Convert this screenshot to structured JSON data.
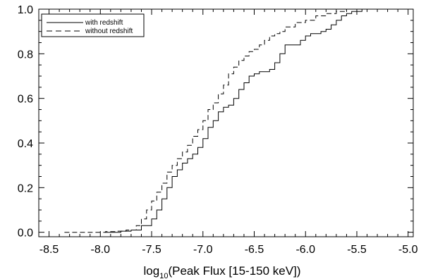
{
  "chart_data": {
    "type": "line",
    "title": "",
    "xlabel": {
      "prefix": "log",
      "subscript": "10",
      "suffix": "(Peak Flux [15-150 keV])"
    },
    "ylabel": "",
    "xlim": [
      -8.6,
      -4.95
    ],
    "ylim": [
      -0.02,
      1.0
    ],
    "x_ticks": [
      -8.5,
      -8.0,
      -7.5,
      -7.0,
      -6.5,
      -6.0,
      -5.5,
      -5.0
    ],
    "x_tick_labels": [
      "-8.5",
      "-8.0",
      "-7.5",
      "-7.0",
      "-6.5",
      "-6.0",
      "-5.5",
      "-5.0"
    ],
    "y_ticks": [
      0.0,
      0.2,
      0.4,
      0.6,
      0.8,
      1.0
    ],
    "y_tick_labels": [
      "0.0",
      "0.2",
      "0.4",
      "0.6",
      "0.8",
      "1.0"
    ],
    "grid": false,
    "legend_position": "top-left",
    "series": [
      {
        "name": "with redshift",
        "style": "solid",
        "color": "#000000",
        "points": [
          [
            -7.95,
            0.0
          ],
          [
            -7.8,
            0.005
          ],
          [
            -7.7,
            0.01
          ],
          [
            -7.6,
            0.03
          ],
          [
            -7.5,
            0.06
          ],
          [
            -7.45,
            0.1
          ],
          [
            -7.4,
            0.15
          ],
          [
            -7.35,
            0.2
          ],
          [
            -7.3,
            0.25
          ],
          [
            -7.25,
            0.28
          ],
          [
            -7.2,
            0.31
          ],
          [
            -7.15,
            0.33
          ],
          [
            -7.1,
            0.35
          ],
          [
            -7.05,
            0.38
          ],
          [
            -7.0,
            0.42
          ],
          [
            -6.95,
            0.47
          ],
          [
            -6.9,
            0.5
          ],
          [
            -6.85,
            0.54
          ],
          [
            -6.8,
            0.56
          ],
          [
            -6.75,
            0.57
          ],
          [
            -6.7,
            0.6
          ],
          [
            -6.65,
            0.64
          ],
          [
            -6.6,
            0.67
          ],
          [
            -6.55,
            0.7
          ],
          [
            -6.5,
            0.71
          ],
          [
            -6.45,
            0.72
          ],
          [
            -6.4,
            0.72
          ],
          [
            -6.35,
            0.73
          ],
          [
            -6.3,
            0.76
          ],
          [
            -6.25,
            0.8
          ],
          [
            -6.2,
            0.84
          ],
          [
            -6.15,
            0.84
          ],
          [
            -6.1,
            0.84
          ],
          [
            -6.05,
            0.86
          ],
          [
            -6.0,
            0.88
          ],
          [
            -5.95,
            0.89
          ],
          [
            -5.9,
            0.89
          ],
          [
            -5.85,
            0.9
          ],
          [
            -5.8,
            0.91
          ],
          [
            -5.75,
            0.93
          ],
          [
            -5.7,
            0.95
          ],
          [
            -5.65,
            0.97
          ],
          [
            -5.6,
            0.98
          ],
          [
            -5.55,
            0.99
          ],
          [
            -5.5,
            0.99
          ],
          [
            -5.45,
            1.0
          ],
          [
            -5.3,
            1.0
          ]
        ]
      },
      {
        "name": "without redshift",
        "style": "dashed",
        "color": "#000000",
        "points": [
          [
            -8.35,
            0.0
          ],
          [
            -8.2,
            0.0
          ],
          [
            -8.0,
            0.0
          ],
          [
            -7.95,
            0.003
          ],
          [
            -7.85,
            0.005
          ],
          [
            -7.75,
            0.01
          ],
          [
            -7.65,
            0.03
          ],
          [
            -7.6,
            0.06
          ],
          [
            -7.55,
            0.1
          ],
          [
            -7.5,
            0.14
          ],
          [
            -7.45,
            0.18
          ],
          [
            -7.4,
            0.22
          ],
          [
            -7.35,
            0.27
          ],
          [
            -7.3,
            0.3
          ],
          [
            -7.25,
            0.33
          ],
          [
            -7.2,
            0.36
          ],
          [
            -7.15,
            0.39
          ],
          [
            -7.1,
            0.43
          ],
          [
            -7.05,
            0.46
          ],
          [
            -7.0,
            0.5
          ],
          [
            -6.95,
            0.55
          ],
          [
            -6.9,
            0.58
          ],
          [
            -6.85,
            0.62
          ],
          [
            -6.8,
            0.66
          ],
          [
            -6.75,
            0.71
          ],
          [
            -6.7,
            0.74
          ],
          [
            -6.65,
            0.77
          ],
          [
            -6.6,
            0.79
          ],
          [
            -6.55,
            0.81
          ],
          [
            -6.5,
            0.82
          ],
          [
            -6.45,
            0.84
          ],
          [
            -6.4,
            0.86
          ],
          [
            -6.35,
            0.88
          ],
          [
            -6.3,
            0.89
          ],
          [
            -6.25,
            0.9
          ],
          [
            -6.2,
            0.92
          ],
          [
            -6.1,
            0.94
          ],
          [
            -6.0,
            0.95
          ],
          [
            -5.9,
            0.97
          ],
          [
            -5.8,
            0.98
          ],
          [
            -5.7,
            0.99
          ],
          [
            -5.6,
            1.0
          ],
          [
            -5.3,
            1.0
          ]
        ]
      }
    ]
  }
}
